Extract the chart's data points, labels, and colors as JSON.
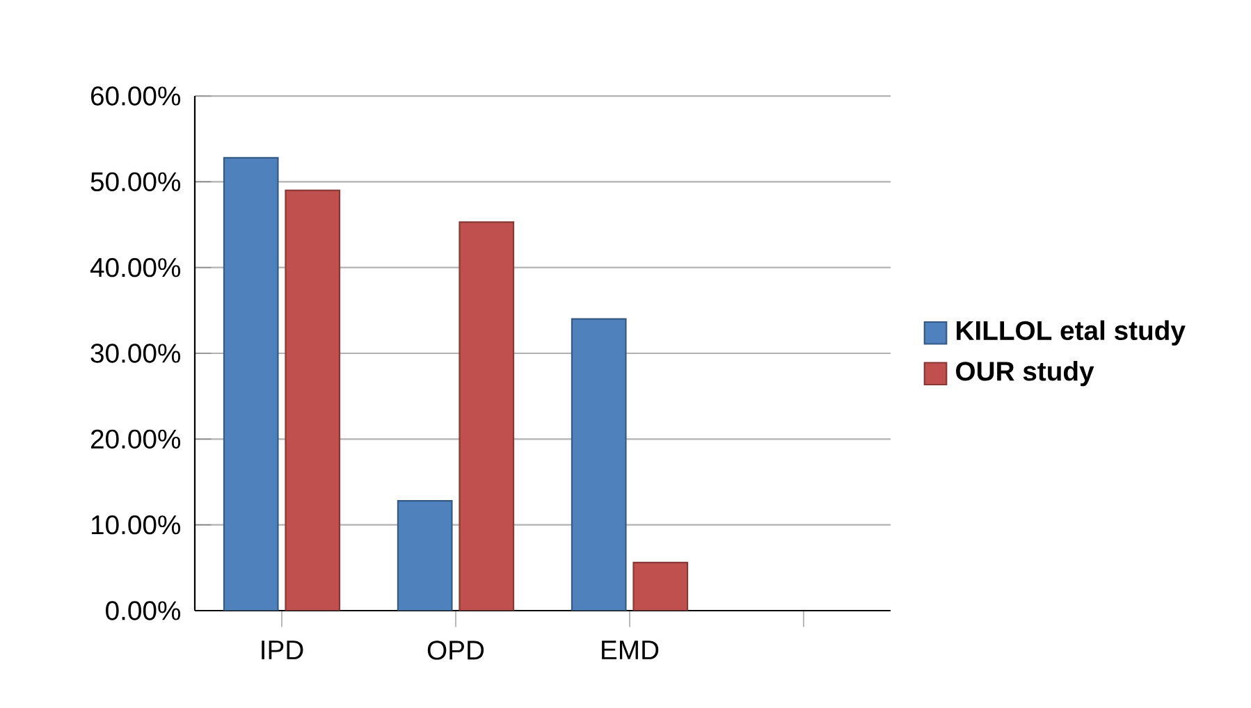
{
  "chart_data": {
    "type": "bar",
    "categories": [
      "IPD",
      "OPD",
      "EMD",
      null
    ],
    "series": [
      {
        "name": "KILLOL etal study",
        "color": "#4f81bd",
        "values": [
          52.8,
          12.8,
          34.0,
          null
        ]
      },
      {
        "name": "OUR study",
        "color": "#c0504d",
        "values": [
          49.0,
          45.3,
          5.6,
          null
        ]
      }
    ],
    "ylim": [
      0,
      60
    ],
    "yticks": [
      {
        "value": 0,
        "label": "0.00%"
      },
      {
        "value": 10,
        "label": "10.00%"
      },
      {
        "value": 20,
        "label": "20.00%"
      },
      {
        "value": 30,
        "label": "30.00%"
      },
      {
        "value": 40,
        "label": "40.00%"
      },
      {
        "value": 50,
        "label": "50.00%"
      },
      {
        "value": 60,
        "label": "60.00%"
      }
    ],
    "grid": "y",
    "legend": "right"
  }
}
